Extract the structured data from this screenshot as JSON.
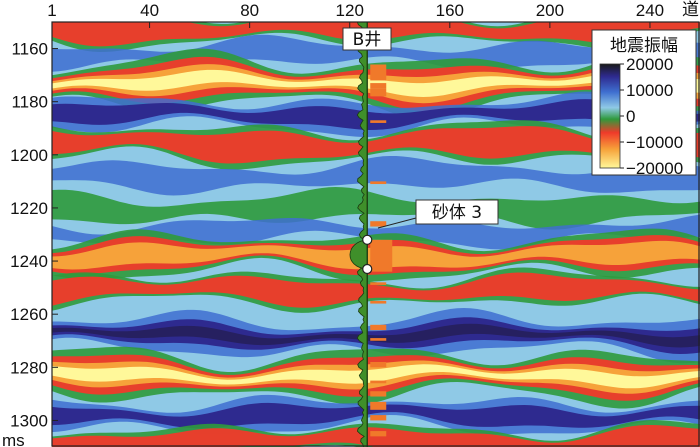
{
  "chart_data": {
    "type": "heatmap",
    "title": "",
    "xlabel": "道",
    "ylabel": "ms",
    "xlim": [
      1,
      260
    ],
    "ylim": [
      1310,
      1150
    ],
    "x_ticks": [
      1,
      40,
      80,
      120,
      160,
      200,
      240
    ],
    "y_ticks": [
      1160,
      1180,
      1200,
      1220,
      1240,
      1260,
      1280,
      1300
    ],
    "colorbar": {
      "title": "地震振幅",
      "ticks": [
        20000,
        10000,
        0,
        -10000,
        -20000
      ],
      "tick_labels": [
        "20000",
        "10000",
        "0",
        "−10000",
        "−20000"
      ],
      "colors": [
        "#1a1a1a",
        "#2e2a8f",
        "#3f6fd0",
        "#8fc9e6",
        "#2f9a3c",
        "#f03a2a",
        "#f6a23a",
        "#fff89a"
      ]
    },
    "well": {
      "name": "B井",
      "trace": 127,
      "log_fill": "#3f8f2a",
      "marker_color": "#f0792a",
      "marker_intervals_ms": [
        [
          1166,
          1172
        ],
        [
          1173,
          1175
        ],
        [
          1175,
          1178
        ],
        [
          1187,
          1188
        ],
        [
          1210,
          1211
        ],
        [
          1225,
          1227
        ],
        [
          1232,
          1244
        ],
        [
          1248,
          1249
        ],
        [
          1255,
          1256
        ],
        [
          1264,
          1266
        ],
        [
          1269,
          1270
        ],
        [
          1278,
          1280
        ],
        [
          1285,
          1286
        ],
        [
          1289,
          1291
        ],
        [
          1293,
          1296
        ],
        [
          1298,
          1300
        ],
        [
          1304,
          1306
        ],
        [
          1310,
          1312
        ]
      ]
    },
    "annotations": [
      {
        "text": "砂体 3",
        "top_ms": 1232,
        "bottom_ms": 1243
      }
    ],
    "events": [
      {
        "t": 1152,
        "amp": -9000
      },
      {
        "t": 1162,
        "amp": 4000
      },
      {
        "t": 1173,
        "amp": -19000
      },
      {
        "t": 1185,
        "amp": 10000
      },
      {
        "t": 1196,
        "amp": -11000
      },
      {
        "t": 1208,
        "amp": 6000
      },
      {
        "t": 1220,
        "amp": -4000
      },
      {
        "t": 1229,
        "amp": 3000
      },
      {
        "t": 1238,
        "amp": -13000
      },
      {
        "t": 1251,
        "amp": -7000
      },
      {
        "t": 1268,
        "amp": 15000
      },
      {
        "t": 1283,
        "amp": -17000
      },
      {
        "t": 1298,
        "amp": 11000
      },
      {
        "t": 1308,
        "amp": -7000
      }
    ]
  }
}
